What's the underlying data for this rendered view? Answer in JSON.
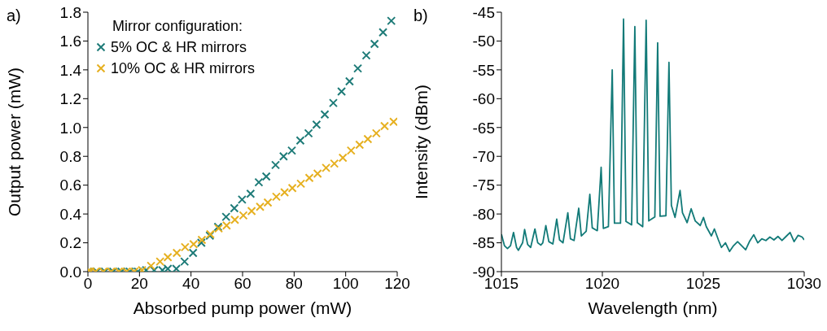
{
  "chart_data": [
    {
      "type": "scatter",
      "xlabel": "Absorbed pump power (mW)",
      "ylabel": "Output power (mW)",
      "legend_title": "Mirror configuration:",
      "annotations": [
        "a)"
      ],
      "xlim": [
        0,
        120
      ],
      "xticks": [
        0,
        20,
        40,
        60,
        80,
        100,
        120
      ],
      "ylim": [
        0,
        1.8
      ],
      "yticks": [
        {
          "value": 0,
          "label": "0.0"
        },
        {
          "value": 0.2,
          "label": "0.2"
        },
        {
          "value": 0.4,
          "label": "0.4"
        },
        {
          "value": 0.6,
          "label": "0.6"
        },
        {
          "value": 0.8,
          "label": "0.8"
        },
        {
          "value": 1.0,
          "label": "1.0"
        },
        {
          "value": 1.2,
          "label": "1.2"
        },
        {
          "value": 1.4,
          "label": "1.4"
        },
        {
          "value": 1.6,
          "label": "1.6"
        },
        {
          "value": 1.8,
          "label": "1.8"
        }
      ],
      "legend": "top left",
      "marker": "cross",
      "series": [
        {
          "name": "5% OC & HR mirrors",
          "color": "#1e7b78",
          "x": [
            0,
            1,
            3.5,
            6.6,
            9.8,
            13,
            16.2,
            19.4,
            22.6,
            25.7,
            28.9,
            31.0,
            34.3,
            37.5,
            40.8,
            44.0,
            47.3,
            50.5,
            53.6,
            56.8,
            59.8,
            63.1,
            66.3,
            69.2,
            72.8,
            75.9,
            79.1,
            82.4,
            85.6,
            88.7,
            91.9,
            95.2,
            98.4,
            101.5,
            104.7,
            108.0,
            111.2,
            114.5,
            117.7
          ],
          "values": [
            0,
            0,
            0,
            0,
            0,
            0,
            0,
            0,
            0.01,
            0.01,
            0.01,
            0.02,
            0.02,
            0.07,
            0.13,
            0.2,
            0.25,
            0.31,
            0.38,
            0.44,
            0.5,
            0.54,
            0.62,
            0.66,
            0.74,
            0.8,
            0.84,
            0.91,
            0.96,
            1.02,
            1.09,
            1.17,
            1.25,
            1.32,
            1.41,
            1.5,
            1.58,
            1.66,
            1.74
          ]
        },
        {
          "name": "10% OC & HR mirrors",
          "color": "#e6b020",
          "x": [
            0,
            1,
            3,
            6,
            9,
            12,
            15,
            18,
            21,
            24.5,
            28.0,
            31.0,
            34.5,
            37.7,
            41.0,
            44.2,
            47.5,
            50.7,
            53.8,
            57.0,
            60.3,
            63.5,
            66.8,
            69.8,
            73.1,
            76.3,
            79.3,
            82.6,
            85.9,
            89.1,
            92.4,
            95.6,
            98.9,
            102.1,
            105.4,
            108.6,
            111.9,
            115.1,
            118.6
          ],
          "values": [
            0,
            0,
            0,
            0,
            0,
            0,
            0,
            0,
            0.01,
            0.04,
            0.07,
            0.1,
            0.13,
            0.17,
            0.19,
            0.22,
            0.26,
            0.3,
            0.32,
            0.36,
            0.39,
            0.42,
            0.45,
            0.48,
            0.52,
            0.55,
            0.58,
            0.61,
            0.65,
            0.68,
            0.72,
            0.75,
            0.79,
            0.84,
            0.88,
            0.92,
            0.96,
            1.01,
            1.04
          ]
        }
      ]
    },
    {
      "type": "line",
      "xlabel": "Wavelength (nm)",
      "ylabel": "Intensity (dBm)",
      "annotations": [
        "b)"
      ],
      "xlim": [
        1015,
        1030
      ],
      "xticks": [
        1015,
        1020,
        1025,
        1030
      ],
      "ylim": [
        -90,
        -45
      ],
      "yticks": [
        -90,
        -85,
        -80,
        -75,
        -70,
        -65,
        -60,
        -55,
        -50,
        -45
      ],
      "legend": false,
      "series": [
        {
          "color": "#127a78",
          "x": [
            1015.0,
            1015.15,
            1015.3,
            1015.45,
            1015.6,
            1015.75,
            1015.84,
            1016.05,
            1016.15,
            1016.3,
            1016.45,
            1016.66,
            1016.8,
            1016.95,
            1017.05,
            1017.2,
            1017.35,
            1017.55,
            1017.74,
            1017.88,
            1018.05,
            1018.29,
            1018.42,
            1018.6,
            1018.83,
            1018.96,
            1019.2,
            1019.38,
            1019.5,
            1019.75,
            1019.94,
            1020.05,
            1020.3,
            1020.49,
            1020.6,
            1020.9,
            1021.05,
            1021.17,
            1021.45,
            1021.61,
            1021.73,
            1022.0,
            1022.17,
            1022.3,
            1022.6,
            1022.74,
            1022.86,
            1023.15,
            1023.3,
            1023.42,
            1023.6,
            1023.85,
            1023.97,
            1024.2,
            1024.4,
            1024.6,
            1024.85,
            1025.01,
            1025.15,
            1025.4,
            1025.55,
            1025.75,
            1025.9,
            1026.1,
            1026.3,
            1026.5,
            1026.7,
            1026.9,
            1027.1,
            1027.3,
            1027.5,
            1027.7,
            1027.9,
            1028.1,
            1028.3,
            1028.5,
            1028.7,
            1028.9,
            1029.1,
            1029.3,
            1029.5,
            1029.7,
            1029.9,
            1030.0
          ],
          "values": [
            -83.5,
            -85.5,
            -86.0,
            -85.5,
            -83.2,
            -85.8,
            -86.3,
            -85.0,
            -82.7,
            -85.3,
            -85.8,
            -82.6,
            -85.0,
            -85.4,
            -85.0,
            -82.0,
            -84.8,
            -85.2,
            -80.9,
            -84.5,
            -85.0,
            -79.8,
            -84.3,
            -84.6,
            -79.0,
            -83.8,
            -83.0,
            -76.6,
            -82.4,
            -82.9,
            -71.9,
            -82.5,
            -82.2,
            -55.0,
            -81.6,
            -81.6,
            -46.2,
            -81.3,
            -81.9,
            -47.5,
            -81.5,
            -82.2,
            -46.4,
            -81.2,
            -80.5,
            -50.3,
            -80.4,
            -80.3,
            -53.7,
            -78.5,
            -80.6,
            -75.9,
            -79.8,
            -81.5,
            -79.1,
            -81.2,
            -82.0,
            -80.6,
            -82.2,
            -83.8,
            -82.6,
            -84.5,
            -85.8,
            -85.0,
            -86.5,
            -85.5,
            -84.8,
            -85.5,
            -86.2,
            -84.7,
            -83.6,
            -85.0,
            -84.3,
            -84.6,
            -84.0,
            -84.5,
            -83.9,
            -84.6,
            -83.9,
            -83.2,
            -84.8,
            -83.7,
            -84.0,
            -84.5
          ]
        }
      ]
    }
  ]
}
